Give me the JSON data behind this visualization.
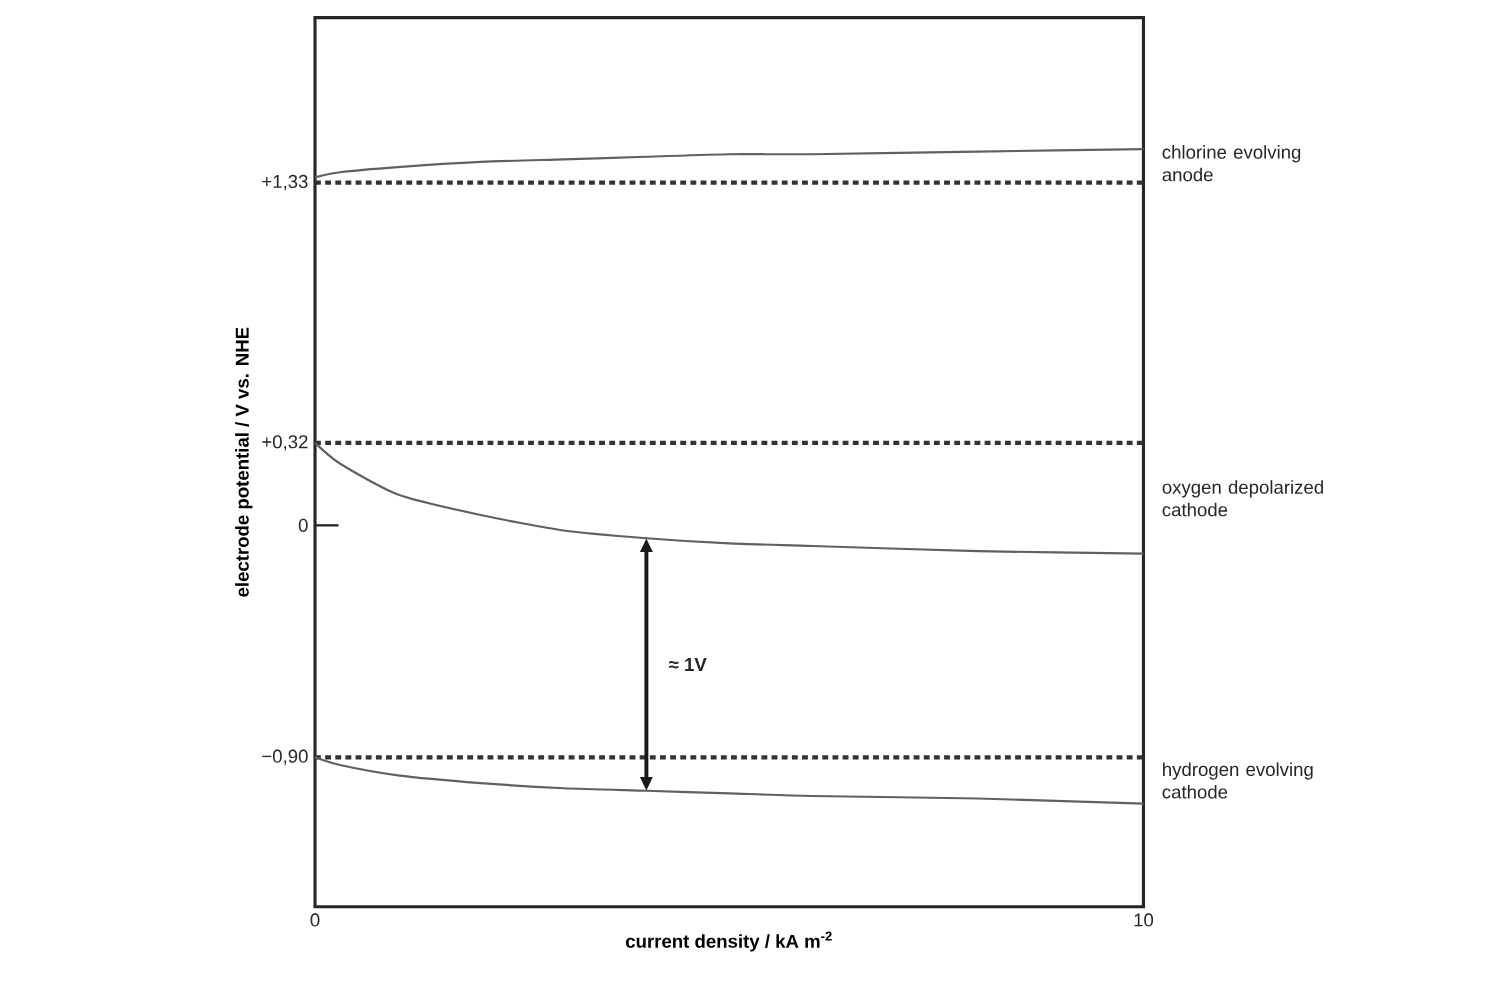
{
  "chart_data": {
    "type": "line",
    "xlabel": "current density / kA m$^{-2}$",
    "ylabel": "electrode potential / V vs. NHE",
    "xlim": [
      0,
      10
    ],
    "xticks": [
      0,
      10
    ],
    "ylim": [
      -1.48,
      1.97
    ],
    "yticks": [
      {
        "value": 1.33,
        "label": "+1,33"
      },
      {
        "value": 0.32,
        "label": "+0,32"
      },
      {
        "value": 0,
        "label": "0"
      },
      {
        "value": -0.9,
        "label": "−0,90"
      }
    ],
    "x": [
      0,
      0.3,
      1,
      2,
      3,
      4,
      5,
      6,
      8,
      10
    ],
    "series": [
      {
        "name": "chlorine evolving anode",
        "color": "#606060",
        "values": [
          1.35,
          1.37,
          1.39,
          1.41,
          1.42,
          1.43,
          1.44,
          1.44,
          1.45,
          1.46
        ]
      },
      {
        "name": "oxygen depolarized cathode",
        "color": "#606060",
        "values": [
          0.32,
          0.24,
          0.12,
          0.04,
          -0.02,
          -0.05,
          -0.07,
          -0.08,
          -0.1,
          -0.11
        ]
      },
      {
        "name": "hydrogen evolving cathode",
        "color": "#606060",
        "values": [
          -0.9,
          -0.93,
          -0.97,
          -1.0,
          -1.02,
          -1.03,
          -1.04,
          -1.05,
          -1.06,
          -1.08
        ]
      }
    ],
    "ref_lines": [
      {
        "axis": "y",
        "value": 1.33,
        "color": "#333333",
        "line_style": "dotted"
      },
      {
        "axis": "y",
        "value": 0.32,
        "color": "#333333",
        "line_style": "dotted"
      },
      {
        "axis": "y",
        "value": -0.9,
        "color": "#333333",
        "line_style": "dotted"
      }
    ],
    "annotations": [
      "≈ 1V"
    ],
    "grid": false,
    "marker": "none",
    "line_style": "solid"
  }
}
